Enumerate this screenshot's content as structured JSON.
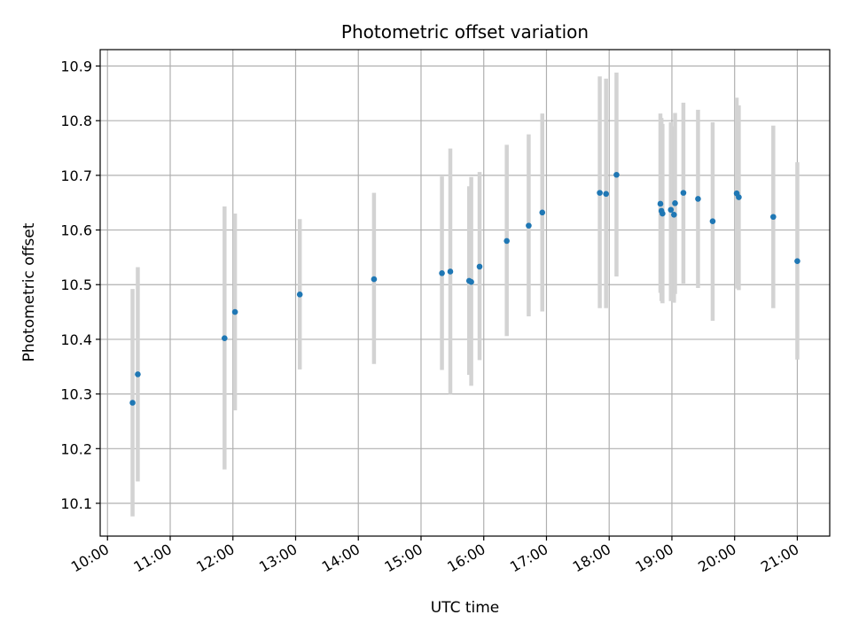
{
  "chart_data": {
    "type": "scatter",
    "title": "Photometric offset variation",
    "xlabel": "UTC time",
    "ylabel": "Photometric offset",
    "grid": true,
    "xlim": [
      "09:53",
      "21:31"
    ],
    "ylim": [
      10.04,
      10.93
    ],
    "x_ticks": [
      "10:00",
      "11:00",
      "12:00",
      "13:00",
      "14:00",
      "15:00",
      "16:00",
      "17:00",
      "18:00",
      "19:00",
      "20:00",
      "21:00"
    ],
    "y_ticks": [
      "10.1",
      "10.2",
      "10.3",
      "10.4",
      "10.5",
      "10.6",
      "10.7",
      "10.8",
      "10.9"
    ],
    "colors": {
      "point": "#1f77b4",
      "errorbar": "#d3d3d3",
      "grid": "#b0b0b0"
    },
    "points": [
      {
        "x": "10:24",
        "y": 10.284,
        "ylow": 10.076,
        "yhigh": 10.492
      },
      {
        "x": "10:29",
        "y": 10.336,
        "ylow": 10.14,
        "yhigh": 10.532
      },
      {
        "x": "11:52",
        "y": 10.402,
        "ylow": 10.162,
        "yhigh": 10.643
      },
      {
        "x": "12:02",
        "y": 10.45,
        "ylow": 10.27,
        "yhigh": 10.63
      },
      {
        "x": "13:04",
        "y": 10.482,
        "ylow": 10.345,
        "yhigh": 10.62
      },
      {
        "x": "14:15",
        "y": 10.51,
        "ylow": 10.355,
        "yhigh": 10.668
      },
      {
        "x": "15:20",
        "y": 10.521,
        "ylow": 10.344,
        "yhigh": 10.698
      },
      {
        "x": "15:28",
        "y": 10.524,
        "ylow": 10.3,
        "yhigh": 10.749
      },
      {
        "x": "15:46",
        "y": 10.507,
        "ylow": 10.335,
        "yhigh": 10.68
      },
      {
        "x": "15:48",
        "y": 10.505,
        "ylow": 10.315,
        "yhigh": 10.697
      },
      {
        "x": "15:56",
        "y": 10.533,
        "ylow": 10.362,
        "yhigh": 10.706
      },
      {
        "x": "16:22",
        "y": 10.58,
        "ylow": 10.406,
        "yhigh": 10.756
      },
      {
        "x": "16:43",
        "y": 10.608,
        "ylow": 10.442,
        "yhigh": 10.775
      },
      {
        "x": "16:56",
        "y": 10.632,
        "ylow": 10.451,
        "yhigh": 10.813
      },
      {
        "x": "17:51",
        "y": 10.668,
        "ylow": 10.457,
        "yhigh": 10.881
      },
      {
        "x": "17:57",
        "y": 10.666,
        "ylow": 10.457,
        "yhigh": 10.877
      },
      {
        "x": "18:07",
        "y": 10.701,
        "ylow": 10.515,
        "yhigh": 10.888
      },
      {
        "x": "18:49",
        "y": 10.648,
        "ylow": 10.485,
        "yhigh": 10.813
      },
      {
        "x": "18:50",
        "y": 10.635,
        "ylow": 10.47,
        "yhigh": 10.805
      },
      {
        "x": "18:51",
        "y": 10.63,
        "ylow": 10.466,
        "yhigh": 10.794
      },
      {
        "x": "18:59",
        "y": 10.637,
        "ylow": 10.47,
        "yhigh": 10.797
      },
      {
        "x": "19:02",
        "y": 10.628,
        "ylow": 10.467,
        "yhigh": 10.79
      },
      {
        "x": "19:03",
        "y": 10.649,
        "ylow": 10.483,
        "yhigh": 10.814
      },
      {
        "x": "19:11",
        "y": 10.668,
        "ylow": 10.502,
        "yhigh": 10.833
      },
      {
        "x": "19:25",
        "y": 10.657,
        "ylow": 10.494,
        "yhigh": 10.82
      },
      {
        "x": "19:39",
        "y": 10.616,
        "ylow": 10.434,
        "yhigh": 10.797
      },
      {
        "x": "20:02",
        "y": 10.667,
        "ylow": 10.493,
        "yhigh": 10.842
      },
      {
        "x": "20:04",
        "y": 10.66,
        "ylow": 10.49,
        "yhigh": 10.828
      },
      {
        "x": "20:37",
        "y": 10.624,
        "ylow": 10.457,
        "yhigh": 10.791
      },
      {
        "x": "21:00",
        "y": 10.543,
        "ylow": 10.363,
        "yhigh": 10.724
      }
    ]
  }
}
